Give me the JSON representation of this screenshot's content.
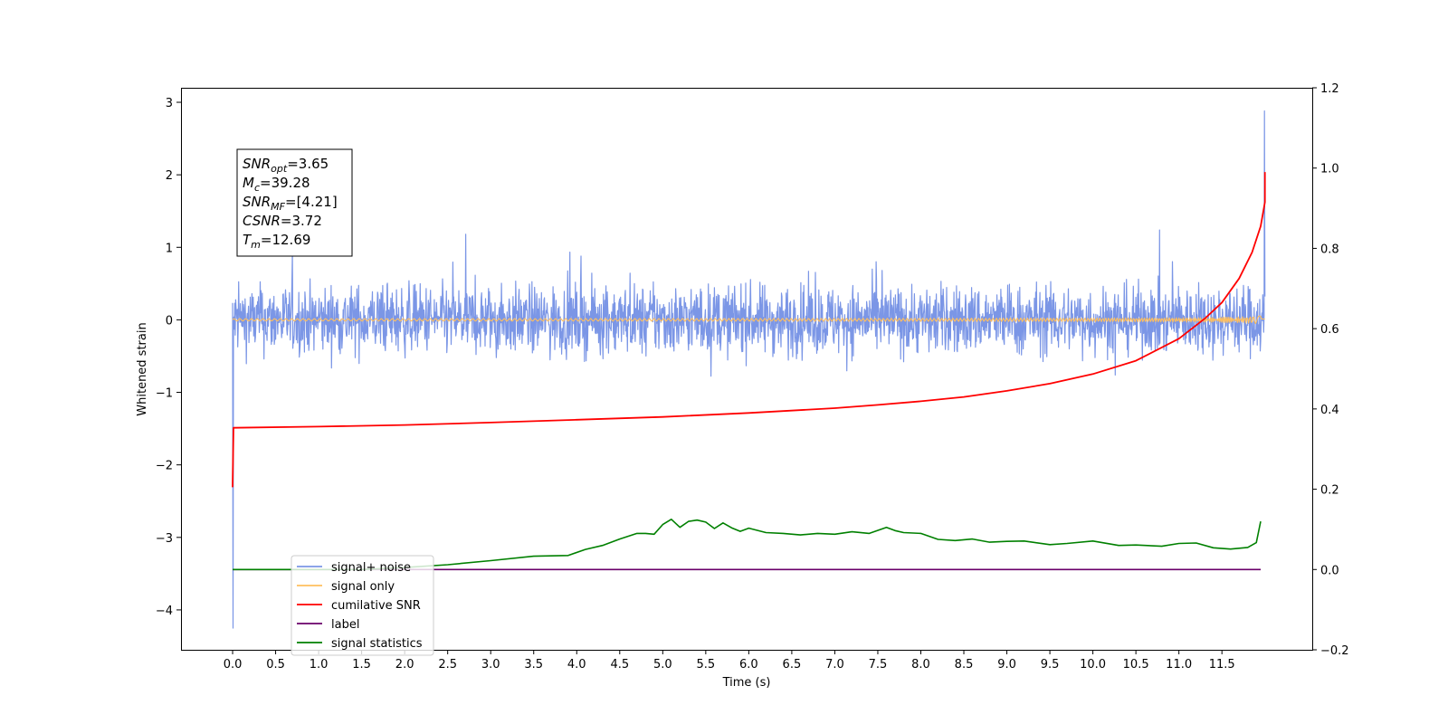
{
  "chart_data": {
    "type": "line",
    "xlabel": "Time (s)",
    "ylabel": "Whitened strain",
    "xlim": [
      -0.6,
      12.55
    ],
    "ylim": [
      -4.55,
      3.2
    ],
    "y2lim": [
      -0.2,
      1.2
    ],
    "grid": false,
    "legend_placement": "lower-left",
    "x_ticks": [
      "0.0",
      "0.5",
      "1.0",
      "1.5",
      "2.0",
      "2.5",
      "3.0",
      "3.5",
      "4.0",
      "4.5",
      "5.0",
      "5.5",
      "6.0",
      "6.5",
      "7.0",
      "7.5",
      "8.0",
      "8.5",
      "9.0",
      "9.5",
      "10.0",
      "10.5",
      "11.0",
      "11.5"
    ],
    "y_ticks": [
      "3",
      "2",
      "1",
      "0",
      "−1",
      "−2",
      "−3",
      "−4"
    ],
    "y2_ticks": [
      "1.2",
      "1.0",
      "0.8",
      "0.6",
      "0.4",
      "0.2",
      "0.0",
      "−0.2"
    ],
    "annotation": {
      "lines": [
        {
          "sym": "SNR",
          "sub": "opt",
          "value": "=3.65"
        },
        {
          "sym": "M",
          "sub": "c",
          "value": "=39.28"
        },
        {
          "sym": "SNR",
          "sub": "MF",
          "value": "=[4.21]"
        },
        {
          "sym": "CSNR",
          "sub": "",
          "value": "=3.72"
        },
        {
          "sym": "T",
          "sub": "m",
          "value": "=12.69"
        }
      ]
    },
    "series": [
      {
        "name": "signal+ noise",
        "color": "#7b96e6",
        "axis": "left",
        "kind": "noise",
        "x_range": [
          0.0,
          12.0
        ],
        "amplitude": 0.6,
        "min": -4.25,
        "max": 2.88
      },
      {
        "name": "signal only",
        "color": "#ffbf5e",
        "axis": "left",
        "kind": "chirp",
        "x_range": [
          0.0,
          12.0
        ]
      },
      {
        "name": "cumilative SNR",
        "color": "#ff0000",
        "axis": "right",
        "x": [
          0.0,
          0.01,
          1.0,
          2.0,
          3.0,
          4.0,
          5.0,
          6.0,
          7.0,
          7.5,
          8.0,
          8.5,
          9.0,
          9.5,
          10.0,
          10.5,
          11.0,
          11.3,
          11.5,
          11.7,
          11.85,
          11.95,
          12.0,
          12.0
        ],
        "y": [
          0.205,
          0.353,
          0.356,
          0.36,
          0.366,
          0.373,
          0.38,
          0.39,
          0.402,
          0.41,
          0.419,
          0.43,
          0.445,
          0.463,
          0.487,
          0.52,
          0.575,
          0.625,
          0.665,
          0.725,
          0.79,
          0.855,
          0.915,
          0.99
        ]
      },
      {
        "name": "label",
        "color": "#6a006a",
        "axis": "right",
        "x": [
          0.0,
          11.95
        ],
        "y": [
          0.0,
          0.0
        ]
      },
      {
        "name": "signal statistics",
        "color": "#008000",
        "axis": "right",
        "x": [
          0.0,
          1.5,
          2.0,
          2.5,
          3.0,
          3.5,
          3.9,
          4.1,
          4.3,
          4.5,
          4.7,
          4.8,
          4.9,
          5.0,
          5.1,
          5.2,
          5.3,
          5.4,
          5.5,
          5.6,
          5.7,
          5.8,
          5.9,
          6.0,
          6.2,
          6.4,
          6.6,
          6.8,
          7.0,
          7.2,
          7.4,
          7.6,
          7.7,
          7.8,
          8.0,
          8.2,
          8.4,
          8.6,
          8.8,
          9.0,
          9.2,
          9.5,
          9.7,
          10.0,
          10.3,
          10.5,
          10.8,
          11.0,
          11.2,
          11.4,
          11.6,
          11.8,
          11.9,
          11.95
        ],
        "y": [
          0.0,
          0.0,
          0.005,
          0.012,
          0.022,
          0.033,
          0.035,
          0.05,
          0.06,
          0.076,
          0.09,
          0.09,
          0.088,
          0.112,
          0.125,
          0.105,
          0.12,
          0.123,
          0.118,
          0.102,
          0.116,
          0.104,
          0.095,
          0.103,
          0.092,
          0.09,
          0.086,
          0.09,
          0.088,
          0.094,
          0.09,
          0.105,
          0.097,
          0.092,
          0.09,
          0.075,
          0.072,
          0.076,
          0.068,
          0.07,
          0.071,
          0.062,
          0.065,
          0.071,
          0.06,
          0.061,
          0.058,
          0.065,
          0.066,
          0.054,
          0.051,
          0.055,
          0.067,
          0.12
        ]
      }
    ],
    "legend": [
      {
        "label": "signal+ noise",
        "color": "#7b96e6"
      },
      {
        "label": "signal only",
        "color": "#ffbf5e"
      },
      {
        "label": "cumilative SNR",
        "color": "#ff0000"
      },
      {
        "label": "label",
        "color": "#6a006a"
      },
      {
        "label": "signal statistics",
        "color": "#008000"
      }
    ]
  }
}
